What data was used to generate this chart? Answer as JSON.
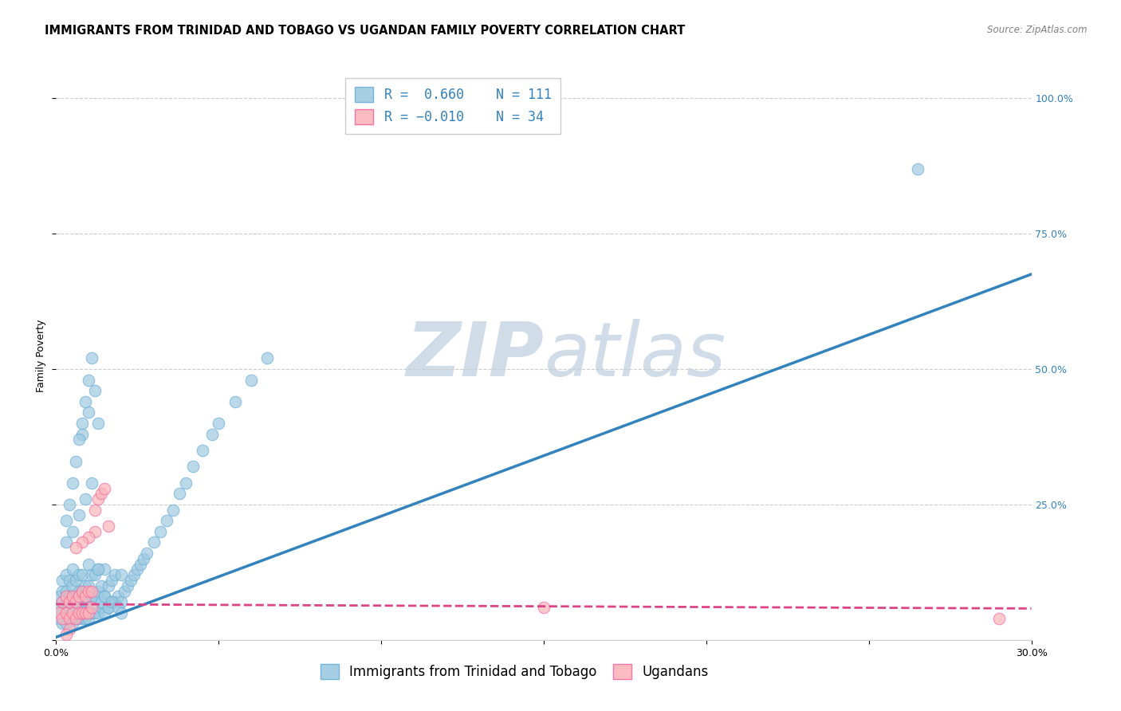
{
  "title": "IMMIGRANTS FROM TRINIDAD AND TOBAGO VS UGANDAN FAMILY POVERTY CORRELATION CHART",
  "source": "Source: ZipAtlas.com",
  "ylabel": "Family Poverty",
  "xlim": [
    0.0,
    0.3
  ],
  "ylim": [
    0.0,
    1.05
  ],
  "xticks": [
    0.0,
    0.05,
    0.1,
    0.15,
    0.2,
    0.25,
    0.3
  ],
  "xticklabels": [
    "0.0%",
    "",
    "",
    "",
    "",
    "",
    "30.0%"
  ],
  "yticks_right": [
    0.0,
    0.25,
    0.5,
    0.75,
    1.0
  ],
  "yticklabels_right": [
    "",
    "25.0%",
    "50.0%",
    "75.0%",
    "100.0%"
  ],
  "legend_labels": [
    "Immigrants from Trinidad and Tobago",
    "Ugandans"
  ],
  "legend_r": [
    "0.660",
    "-0.010"
  ],
  "legend_n": [
    "111",
    "34"
  ],
  "blue_color": "#9ecae1",
  "blue_edge_color": "#6baed6",
  "pink_color": "#fbb4b9",
  "pink_edge_color": "#f768a1",
  "blue_line_color": "#3182bd",
  "pink_line_color": "#dd4488",
  "watermark_zip": "ZIP",
  "watermark_atlas": "atlas",
  "watermark_color": "#d0dce8",
  "title_fontsize": 10.5,
  "axis_label_fontsize": 9,
  "tick_fontsize": 9,
  "legend_fontsize": 12,
  "blue_scatter_x": [
    0.001,
    0.001,
    0.001,
    0.002,
    0.002,
    0.002,
    0.002,
    0.002,
    0.003,
    0.003,
    0.003,
    0.003,
    0.003,
    0.004,
    0.004,
    0.004,
    0.004,
    0.005,
    0.005,
    0.005,
    0.005,
    0.005,
    0.006,
    0.006,
    0.006,
    0.006,
    0.007,
    0.007,
    0.007,
    0.007,
    0.008,
    0.008,
    0.008,
    0.008,
    0.009,
    0.009,
    0.009,
    0.01,
    0.01,
    0.01,
    0.01,
    0.011,
    0.011,
    0.011,
    0.012,
    0.012,
    0.012,
    0.013,
    0.013,
    0.013,
    0.014,
    0.014,
    0.015,
    0.015,
    0.015,
    0.016,
    0.016,
    0.017,
    0.017,
    0.018,
    0.018,
    0.019,
    0.02,
    0.02,
    0.021,
    0.022,
    0.023,
    0.024,
    0.025,
    0.026,
    0.027,
    0.028,
    0.03,
    0.032,
    0.034,
    0.036,
    0.038,
    0.04,
    0.042,
    0.045,
    0.048,
    0.05,
    0.055,
    0.06,
    0.065,
    0.008,
    0.01,
    0.012,
    0.014,
    0.016,
    0.003,
    0.004,
    0.005,
    0.006,
    0.007,
    0.008,
    0.009,
    0.01,
    0.011,
    0.013,
    0.003,
    0.005,
    0.007,
    0.009,
    0.011,
    0.013,
    0.015,
    0.017,
    0.019,
    0.02,
    0.265
  ],
  "blue_scatter_y": [
    0.04,
    0.06,
    0.08,
    0.03,
    0.05,
    0.07,
    0.09,
    0.11,
    0.03,
    0.05,
    0.07,
    0.09,
    0.12,
    0.04,
    0.06,
    0.08,
    0.11,
    0.03,
    0.05,
    0.08,
    0.1,
    0.13,
    0.04,
    0.06,
    0.08,
    0.11,
    0.04,
    0.06,
    0.09,
    0.12,
    0.04,
    0.06,
    0.09,
    0.12,
    0.04,
    0.07,
    0.1,
    0.04,
    0.07,
    0.1,
    0.14,
    0.05,
    0.08,
    0.12,
    0.05,
    0.08,
    0.12,
    0.05,
    0.09,
    0.13,
    0.06,
    0.1,
    0.05,
    0.08,
    0.13,
    0.06,
    0.1,
    0.07,
    0.11,
    0.07,
    0.12,
    0.08,
    0.07,
    0.12,
    0.09,
    0.1,
    0.11,
    0.12,
    0.13,
    0.14,
    0.15,
    0.16,
    0.18,
    0.2,
    0.22,
    0.24,
    0.27,
    0.29,
    0.32,
    0.35,
    0.38,
    0.4,
    0.44,
    0.48,
    0.52,
    0.38,
    0.42,
    0.46,
    0.07,
    0.06,
    0.22,
    0.25,
    0.29,
    0.33,
    0.37,
    0.4,
    0.44,
    0.48,
    0.52,
    0.4,
    0.18,
    0.2,
    0.23,
    0.26,
    0.29,
    0.13,
    0.08,
    0.07,
    0.06,
    0.05,
    0.87
  ],
  "pink_scatter_x": [
    0.001,
    0.002,
    0.002,
    0.003,
    0.003,
    0.004,
    0.004,
    0.005,
    0.005,
    0.006,
    0.006,
    0.007,
    0.007,
    0.008,
    0.008,
    0.009,
    0.009,
    0.01,
    0.01,
    0.011,
    0.011,
    0.012,
    0.013,
    0.014,
    0.015,
    0.016,
    0.012,
    0.01,
    0.008,
    0.006,
    0.15,
    0.29,
    0.004,
    0.003
  ],
  "pink_scatter_y": [
    0.05,
    0.04,
    0.07,
    0.05,
    0.08,
    0.04,
    0.07,
    0.05,
    0.08,
    0.04,
    0.07,
    0.05,
    0.08,
    0.05,
    0.09,
    0.05,
    0.08,
    0.05,
    0.09,
    0.06,
    0.09,
    0.24,
    0.26,
    0.27,
    0.28,
    0.21,
    0.2,
    0.19,
    0.18,
    0.17,
    0.06,
    0.04,
    0.02,
    0.01
  ],
  "blue_line_x": [
    0.0,
    0.3
  ],
  "blue_line_y": [
    0.005,
    0.675
  ],
  "pink_line_x": [
    0.0,
    0.3
  ],
  "pink_line_y": [
    0.066,
    0.058
  ]
}
